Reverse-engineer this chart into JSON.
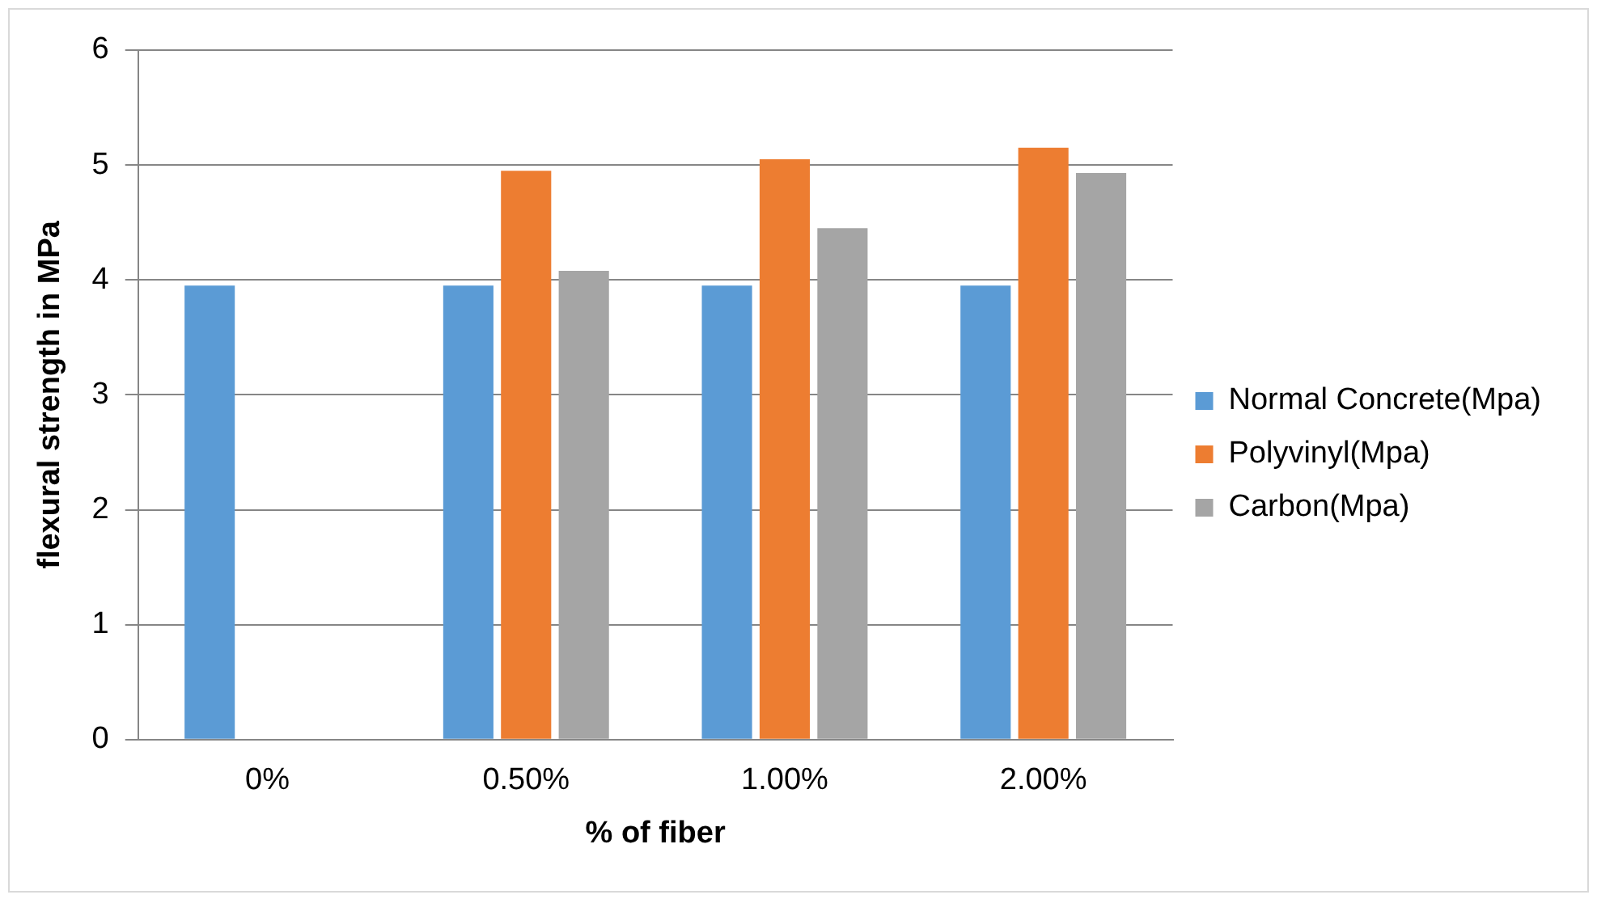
{
  "chart_data": {
    "type": "bar",
    "xlabel": "% of fiber",
    "ylabel": "flexural strength in MPa",
    "categories": [
      "0%",
      "0.50%",
      "1.00%",
      "2.00%"
    ],
    "series": [
      {
        "name": "Normal Concrete(Mpa)",
        "color": "#5b9bd5",
        "values": [
          3.95,
          3.95,
          3.95,
          3.95
        ]
      },
      {
        "name": "Polyvinyl(Mpa)",
        "color": "#ed7d31",
        "values": [
          null,
          4.95,
          5.05,
          5.15
        ]
      },
      {
        "name": "Carbon(Mpa)",
        "color": "#a5a5a5",
        "values": [
          null,
          4.08,
          4.45,
          4.93
        ]
      }
    ],
    "ylim": [
      0,
      6
    ],
    "yticks": [
      0,
      1,
      2,
      3,
      4,
      5,
      6
    ],
    "grid": "y",
    "legend": "right"
  }
}
